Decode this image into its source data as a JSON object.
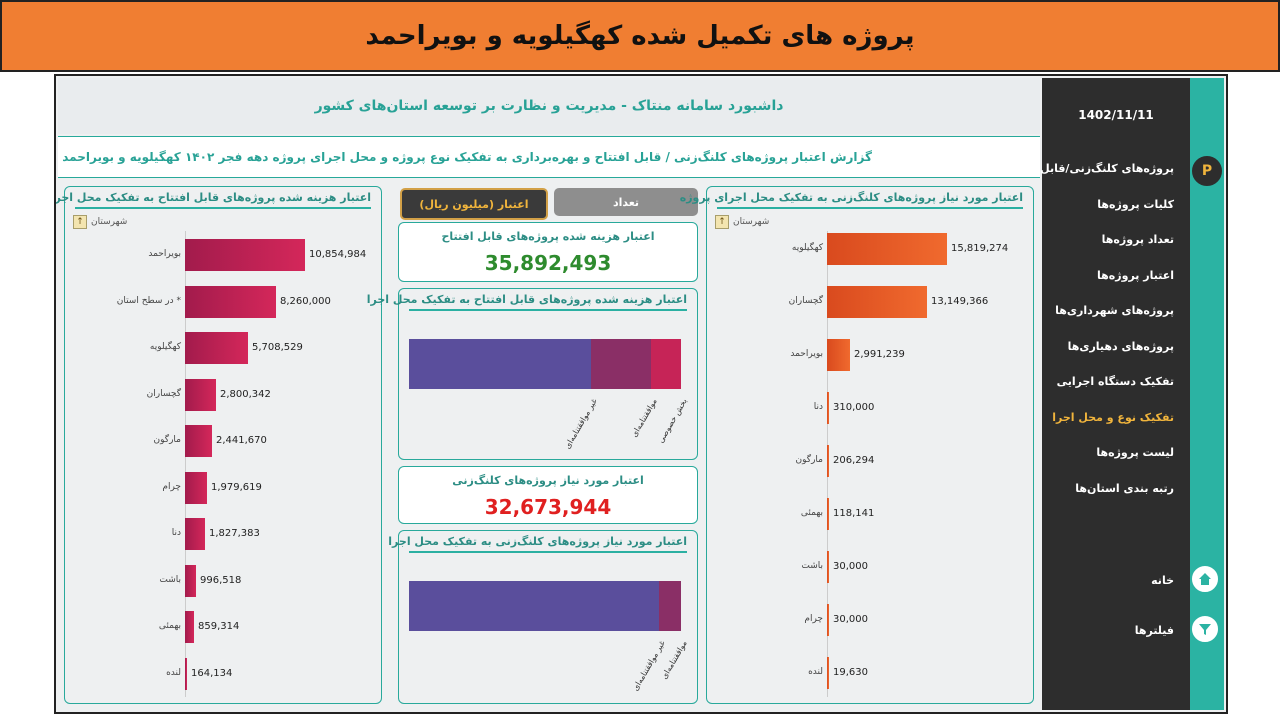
{
  "banner": {
    "title": "پروژه های تکمیل شده کهگیلویه و بویراحمد"
  },
  "header": {
    "title": "داشبورد سامانه منتاک - مدیریت و نظارت بر توسعه استان‌های کشور"
  },
  "report": {
    "title": "گزارش اعتبار پروژه‌های کلنگ‌زنی / قابل افتتاح و بهره‌برداری به تفکیک نوع پروژه و محل اجرای پروژه دهه فجر ۱۴۰۲ کهگیلویه و بویراحمد"
  },
  "left_panel": {
    "title": "اعتبار هزینه شده پروژه‌های قابل افتتاح به تفکیک محل اجرای پروژه",
    "city_label": "شهرستان",
    "rows": [
      {
        "name": "بویراحمد",
        "value": 10854984,
        "label": "10,854,984"
      },
      {
        "name": "* در سطح استان",
        "value": 8260000,
        "label": "8,260,000"
      },
      {
        "name": "کهگیلویه",
        "value": 5708529,
        "label": "5,708,529"
      },
      {
        "name": "گچساران",
        "value": 2800342,
        "label": "2,800,342"
      },
      {
        "name": "مارگون",
        "value": 2441670,
        "label": "2,441,670"
      },
      {
        "name": "چرام",
        "value": 1979619,
        "label": "1,979,619"
      },
      {
        "name": "دنا",
        "value": 1827383,
        "label": "1,827,383"
      },
      {
        "name": "باشت",
        "value": 996518,
        "label": "996,518"
      },
      {
        "name": "بهمئی",
        "value": 859314,
        "label": "859,314"
      },
      {
        "name": "لنده",
        "value": 164134,
        "label": "164,134"
      }
    ]
  },
  "right_panel": {
    "title": "اعتبار مورد نیاز پروژه‌های کلنگ‌زنی به تفکیک محل اجرای پروژه",
    "city_label": "شهرستان",
    "rows": [
      {
        "name": "کهگیلویه",
        "value": 15819274,
        "label": "15,819,274"
      },
      {
        "name": "گچساران",
        "value": 13149366,
        "label": "13,149,366"
      },
      {
        "name": "بویراحمد",
        "value": 2991239,
        "label": "2,991,239"
      },
      {
        "name": "دنا",
        "value": 310000,
        "label": "310,000"
      },
      {
        "name": "مارگون",
        "value": 206294,
        "label": "206,294"
      },
      {
        "name": "بهمئی",
        "value": 118141,
        "label": "118,141"
      },
      {
        "name": "باشت",
        "value": 30000,
        "label": "30,000"
      },
      {
        "name": "چرام",
        "value": 30000,
        "label": "30,000"
      },
      {
        "name": "لنده",
        "value": 19630,
        "label": "19,630"
      }
    ]
  },
  "toggle": {
    "count_label": "تعداد",
    "credit_label": "اعتبار (میلیون ریال)"
  },
  "card_spent": {
    "title": "اعتبار هزینه شده پروژه‌های قابل افتتاح",
    "value": "35,892,493"
  },
  "card_required": {
    "title": "اعتبار مورد نیاز پروژه‌های کلنگ‌زنی",
    "value": "32,673,944"
  },
  "stack_spent": {
    "title": "اعتبار هزینه شده پروژه‌های قابل افتتاح به تفکیک محل اجرا",
    "segments": [
      {
        "name": "غیر موافقتنامه‌ای",
        "share": 0.67,
        "color": "#5a4e9c"
      },
      {
        "name": "موافقتنامه‌ای",
        "share": 0.22,
        "color": "#8a2f66"
      },
      {
        "name": "بخش خصوصی",
        "share": 0.11,
        "color": "#c62457"
      }
    ]
  },
  "stack_required": {
    "title": "اعتبار مورد نیاز پروژه‌های کلنگ‌زنی به تفکیک محل اجرا",
    "segments": [
      {
        "name": "غیر موافقتنامه‌ای",
        "share": 0.92,
        "color": "#5a4e9c"
      },
      {
        "name": "موافقتنامه‌ای",
        "share": 0.08,
        "color": "#8a2f66"
      }
    ]
  },
  "sidebar": {
    "date": "1402/11/11",
    "items": [
      {
        "label": "پروژه‌های کلنگ‌زنی/قابل افتتاح"
      },
      {
        "label": "کلیات پروژه‌ها"
      },
      {
        "label": "تعداد پروژه‌ها"
      },
      {
        "label": "اعتبار پروژه‌ها"
      },
      {
        "label": "پروژه‌های شهرداری‌ها"
      },
      {
        "label": "پروژه‌های دهیاری‌ها"
      },
      {
        "label": "تفکیک دستگاه اجرایی"
      },
      {
        "label": "تفکیک نوع و محل اجرا"
      },
      {
        "label": "لیست پروژه‌ها"
      },
      {
        "label": "رتبه بندی استان‌ها"
      }
    ],
    "home_label": "خانه",
    "filters_label": "فیلترها"
  },
  "colors": {
    "accent": "#2bb3a3",
    "active_menu": "#f0b43c",
    "green_value": "#2e8b2e",
    "red_value": "#e02020"
  }
}
